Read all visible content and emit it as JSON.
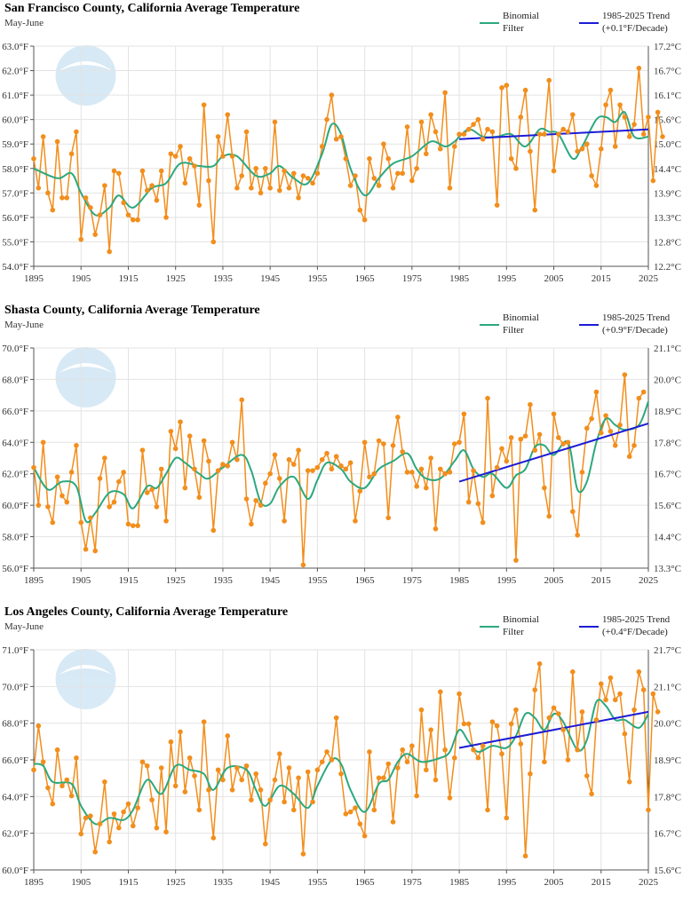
{
  "colors": {
    "observed": "#f28e1c",
    "filter": "#2ca87f",
    "trend": "#1c1cd6",
    "grid": "#e3e3e3",
    "logo": "#4f9fd6"
  },
  "chart_data": [
    {
      "type": "line",
      "title": "San Francisco County, California Average Temperature",
      "subtitle": "May-June",
      "legend": {
        "filter_line1": "Binomial",
        "filter_line2": "Filter",
        "trend_line1": "1985-2025 Trend",
        "trend_line2": "(+0.1°F/Decade)"
      },
      "ylim_f": [
        54,
        63
      ],
      "yticks_f": [
        "54.0°F",
        "55.0°F",
        "56.0°F",
        "57.0°F",
        "58.0°F",
        "59.0°F",
        "60.0°F",
        "61.0°F",
        "62.0°F",
        "63.0°F"
      ],
      "yticks_c": [
        "12.2°C",
        "12.8°C",
        "13.3°C",
        "13.9°C",
        "14.4°C",
        "15.0°C",
        "15.6°C",
        "16.1°C",
        "16.7°C",
        "17.2°C"
      ],
      "xticks": [
        "1895",
        "1905",
        "1915",
        "1925",
        "1935",
        "1945",
        "1955",
        "1965",
        "1975",
        "1985",
        "1995",
        "2005",
        "2015",
        "2025"
      ],
      "x_start": 1895,
      "values": [
        58.4,
        57.2,
        59.3,
        57.0,
        56.3,
        59.1,
        56.8,
        56.8,
        58.6,
        59.5,
        55.1,
        56.8,
        56.4,
        55.3,
        56.1,
        57.3,
        54.6,
        57.9,
        57.8,
        56.6,
        56.1,
        55.9,
        55.9,
        57.9,
        57.1,
        57.3,
        56.7,
        57.9,
        56.0,
        58.6,
        58.5,
        58.9,
        57.4,
        58.4,
        58.1,
        56.5,
        60.6,
        57.5,
        55.0,
        59.3,
        58.5,
        60.2,
        58.5,
        57.2,
        57.7,
        59.5,
        57.2,
        58.0,
        57.0,
        58.0,
        57.2,
        59.9,
        57.1,
        57.9,
        57.2,
        57.8,
        56.8,
        57.7,
        57.6,
        57.4,
        57.8,
        58.9,
        60.0,
        61.0,
        59.2,
        59.3,
        58.4,
        57.3,
        57.7,
        56.3,
        55.9,
        58.4,
        57.6,
        57.3,
        59.0,
        58.4,
        57.2,
        57.8,
        57.8,
        59.7,
        57.5,
        58.0,
        59.9,
        58.6,
        60.2,
        59.5,
        58.8,
        61.1,
        57.2,
        58.9,
        59.4,
        59.4,
        59.6,
        59.8,
        60.0,
        59.2,
        59.6,
        59.5,
        56.5,
        61.3,
        61.4,
        58.4,
        58.0,
        60.1,
        61.2,
        58.7,
        56.3,
        59.4,
        59.4,
        61.6,
        57.9,
        59.4,
        59.6,
        59.5,
        60.2,
        58.7,
        58.8,
        59.0,
        57.7,
        57.3,
        58.8,
        60.6,
        61.2,
        58.9,
        60.6,
        60.1,
        59.3,
        59.8,
        62.1,
        59.4,
        60.1,
        57.5,
        60.3,
        59.3
      ],
      "filter": [
        [
          1895,
          58.0
        ],
        [
          1900,
          57.6
        ],
        [
          1903,
          57.8
        ],
        [
          1905,
          57.0
        ],
        [
          1908,
          56.1
        ],
        [
          1911,
          56.4
        ],
        [
          1913,
          56.9
        ],
        [
          1916,
          56.4
        ],
        [
          1920,
          57.2
        ],
        [
          1923,
          57.4
        ],
        [
          1926,
          58.2
        ],
        [
          1930,
          58.1
        ],
        [
          1933,
          58.1
        ],
        [
          1935,
          58.5
        ],
        [
          1938,
          58.5
        ],
        [
          1942,
          57.7
        ],
        [
          1945,
          57.8
        ],
        [
          1947,
          58.1
        ],
        [
          1950,
          57.6
        ],
        [
          1953,
          57.4
        ],
        [
          1956,
          58.6
        ],
        [
          1958,
          59.8
        ],
        [
          1960,
          59.4
        ],
        [
          1962,
          58.0
        ],
        [
          1965,
          56.9
        ],
        [
          1968,
          57.6
        ],
        [
          1971,
          58.2
        ],
        [
          1975,
          58.5
        ],
        [
          1979,
          59.1
        ],
        [
          1982,
          58.9
        ],
        [
          1984,
          59.1
        ],
        [
          1987,
          59.6
        ],
        [
          1990,
          59.3
        ],
        [
          1993,
          59.3
        ],
        [
          1996,
          59.4
        ],
        [
          1999,
          58.9
        ],
        [
          2002,
          59.6
        ],
        [
          2004,
          59.5
        ],
        [
          2006,
          59.4
        ],
        [
          2009,
          58.4
        ],
        [
          2011,
          58.9
        ],
        [
          2014,
          60.0
        ],
        [
          2016,
          60.1
        ],
        [
          2018,
          59.9
        ],
        [
          2020,
          60.3
        ],
        [
          2022,
          59.3
        ],
        [
          2025,
          59.3
        ]
      ],
      "trend": [
        [
          1985,
          59.2
        ],
        [
          2025,
          59.6
        ]
      ]
    },
    {
      "type": "line",
      "title": "Shasta County, California Average Temperature",
      "subtitle": "May-June",
      "legend": {
        "filter_line1": "Binomial",
        "filter_line2": "Filter",
        "trend_line1": "1985-2025 Trend",
        "trend_line2": "(+0.9°F/Decade)"
      },
      "ylim_f": [
        56,
        70
      ],
      "yticks_f": [
        "56.0°F",
        "58.0°F",
        "60.0°F",
        "62.0°F",
        "64.0°F",
        "66.0°F",
        "68.0°F",
        "70.0°F"
      ],
      "yticks_c": [
        "13.3°C",
        "14.4°C",
        "15.6°C",
        "16.7°C",
        "17.8°C",
        "18.9°C",
        "20.0°C",
        "21.1°C"
      ],
      "xticks": [
        "1895",
        "1905",
        "1915",
        "1925",
        "1935",
        "1945",
        "1955",
        "1965",
        "1975",
        "1985",
        "1995",
        "2005",
        "2015",
        "2025"
      ],
      "x_start": 1895,
      "values": [
        62.4,
        60.0,
        64.0,
        59.9,
        58.9,
        61.8,
        60.6,
        60.2,
        62.1,
        63.8,
        58.9,
        57.2,
        59.2,
        57.1,
        61.7,
        63.0,
        59.9,
        60.2,
        61.5,
        62.1,
        58.8,
        58.7,
        58.7,
        63.5,
        60.8,
        61.0,
        59.9,
        62.3,
        59.0,
        64.7,
        63.6,
        65.3,
        61.1,
        64.4,
        62.3,
        60.5,
        64.1,
        62.8,
        58.4,
        62.2,
        62.6,
        62.5,
        64.0,
        62.9,
        66.7,
        60.4,
        58.8,
        60.3,
        60.0,
        61.4,
        62.0,
        63.2,
        61.7,
        59.0,
        62.9,
        62.6,
        63.5,
        56.2,
        62.2,
        62.2,
        62.4,
        62.9,
        63.3,
        62.3,
        63.1,
        62.5,
        62.3,
        62.7,
        59.0,
        60.9,
        64.0,
        61.8,
        62.0,
        64.1,
        63.9,
        59.2,
        63.8,
        65.6,
        63.4,
        62.1,
        62.1,
        61.2,
        62.3,
        61.1,
        63.0,
        58.5,
        62.3,
        62.0,
        62.1,
        63.9,
        64.0,
        65.8,
        60.2,
        62.2,
        60.1,
        58.9,
        66.8,
        60.6,
        62.4,
        63.6,
        62.8,
        64.3,
        56.5,
        64.2,
        64.4,
        66.4,
        63.5,
        64.5,
        61.1,
        59.3,
        65.8,
        64.3,
        63.9,
        64.0,
        59.6,
        58.1,
        62.1,
        64.9,
        65.5,
        67.2,
        64.6,
        65.7,
        64.7,
        63.8,
        65.1,
        68.3,
        63.1,
        63.8,
        66.8,
        67.2
      ],
      "filter": [
        [
          1895,
          62.4
        ],
        [
          1898,
          61.0
        ],
        [
          1901,
          61.5
        ],
        [
          1904,
          61.2
        ],
        [
          1906,
          59.0
        ],
        [
          1908,
          59.5
        ],
        [
          1911,
          60.8
        ],
        [
          1914,
          60.7
        ],
        [
          1916,
          59.8
        ],
        [
          1919,
          61.2
        ],
        [
          1921,
          61.1
        ],
        [
          1923,
          62.0
        ],
        [
          1925,
          63.0
        ],
        [
          1927,
          62.7
        ],
        [
          1930,
          62.0
        ],
        [
          1932,
          61.7
        ],
        [
          1935,
          62.4
        ],
        [
          1939,
          63.2
        ],
        [
          1941,
          62.2
        ],
        [
          1943,
          60.2
        ],
        [
          1945,
          60.1
        ],
        [
          1947,
          61.2
        ],
        [
          1950,
          61.8
        ],
        [
          1953,
          60.4
        ],
        [
          1955,
          61.6
        ],
        [
          1957,
          62.7
        ],
        [
          1960,
          62.3
        ],
        [
          1962,
          61.5
        ],
        [
          1965,
          61.1
        ],
        [
          1968,
          62.3
        ],
        [
          1971,
          62.8
        ],
        [
          1974,
          63.3
        ],
        [
          1976,
          62.3
        ],
        [
          1978,
          61.7
        ],
        [
          1981,
          61.7
        ],
        [
          1984,
          62.8
        ],
        [
          1986,
          63.5
        ],
        [
          1988,
          62.3
        ],
        [
          1990,
          61.8
        ],
        [
          1992,
          62.0
        ],
        [
          1995,
          61.1
        ],
        [
          1997,
          61.9
        ],
        [
          1999,
          62.3
        ],
        [
          2001,
          63.7
        ],
        [
          2003,
          63.8
        ],
        [
          2005,
          63.2
        ],
        [
          2008,
          64.0
        ],
        [
          2010,
          61.0
        ],
        [
          2012,
          61.5
        ],
        [
          2014,
          64.0
        ],
        [
          2016,
          65.5
        ],
        [
          2018,
          65.1
        ],
        [
          2020,
          64.8
        ],
        [
          2023,
          65.1
        ],
        [
          2025,
          66.6
        ]
      ],
      "trend": [
        [
          1985,
          61.5
        ],
        [
          2025,
          65.2
        ]
      ]
    },
    {
      "type": "line",
      "title": "Los Angeles County, California Average Temperature",
      "subtitle": "May-June",
      "legend": {
        "filter_line1": "Binomial",
        "filter_line2": "Filter",
        "trend_line1": "1985-2025 Trend",
        "trend_line2": "(+0.4°F/Decade)"
      },
      "ylim_f": [
        60,
        71
      ],
      "yticks_f": [
        "60.0°F",
        "62.0°F",
        "64.0°F",
        "66.0°F",
        "68.0°F",
        "70.0°F",
        "71.0°F"
      ],
      "yticks_c": [
        "15.6°C",
        "16.7°C",
        "17.8°C",
        "18.9°C",
        "20.0°C",
        "21.1°C",
        "21.7°C"
      ],
      "xticks": [
        "1895",
        "1905",
        "1915",
        "1925",
        "1935",
        "1945",
        "1955",
        "1965",
        "1975",
        "1985",
        "1995",
        "2005",
        "2015",
        "2025"
      ],
      "x_start": 1895,
      "values": [
        65.0,
        67.2,
        65.4,
        64.1,
        63.3,
        66.0,
        64.2,
        64.5,
        63.7,
        65.6,
        61.8,
        62.6,
        62.7,
        60.9,
        62.3,
        64.4,
        61.4,
        62.8,
        62.1,
        62.9,
        63.3,
        62.2,
        63.1,
        65.4,
        65.2,
        63.5,
        62.1,
        65.1,
        61.9,
        66.4,
        64.2,
        66.9,
        63.9,
        65.6,
        64.7,
        63.0,
        67.4,
        64.0,
        61.6,
        65.0,
        64.5,
        66.7,
        64.0,
        65.1,
        64.5,
        65.2,
        63.5,
        64.8,
        64.0,
        61.3,
        63.5,
        64.5,
        65.8,
        63.4,
        65.1,
        63.0,
        64.6,
        60.8,
        64.9,
        63.4,
        65.0,
        65.4,
        65.9,
        65.5,
        67.6,
        64.8,
        62.8,
        62.9,
        63.1,
        62.3,
        61.7,
        65.9,
        63.0,
        64.6,
        64.6,
        65.3,
        62.4,
        65.1,
        66.0,
        65.4,
        66.2,
        63.7,
        68.0,
        65.0,
        67.0,
        64.5,
        68.9,
        66.0,
        63.6,
        65.6,
        68.8,
        67.3,
        67.3,
        66.0,
        65.6,
        66.2,
        63.0,
        67.4,
        67.2,
        65.8,
        62.6,
        67.3,
        68.0,
        66.3,
        60.7,
        64.8,
        69.0,
        70.3,
        65.4,
        67.6,
        68.1,
        67.8,
        67.0,
        65.5,
        69.9,
        66.0,
        67.9,
        64.7,
        63.8,
        67.5,
        69.3,
        68.5,
        69.6,
        68.5,
        68.8,
        66.8,
        64.4,
        68.0,
        69.9,
        69.0,
        63.0,
        68.8,
        67.9
      ],
      "filter": [
        [
          1895,
          65.3
        ],
        [
          1897,
          65.2
        ],
        [
          1899,
          64.4
        ],
        [
          1903,
          64.3
        ],
        [
          1905,
          63.2
        ],
        [
          1908,
          62.3
        ],
        [
          1911,
          62.6
        ],
        [
          1914,
          62.5
        ],
        [
          1916,
          63.0
        ],
        [
          1919,
          64.5
        ],
        [
          1922,
          63.8
        ],
        [
          1925,
          65.2
        ],
        [
          1928,
          65.0
        ],
        [
          1931,
          64.8
        ],
        [
          1933,
          64.0
        ],
        [
          1936,
          65.1
        ],
        [
          1940,
          65.0
        ],
        [
          1942,
          64.0
        ],
        [
          1944,
          63.2
        ],
        [
          1947,
          64.2
        ],
        [
          1950,
          63.8
        ],
        [
          1953,
          63.1
        ],
        [
          1955,
          64.2
        ],
        [
          1958,
          65.5
        ],
        [
          1960,
          65.3
        ],
        [
          1962,
          64.0
        ],
        [
          1965,
          62.9
        ],
        [
          1968,
          64.3
        ],
        [
          1970,
          64.5
        ],
        [
          1972,
          65.4
        ],
        [
          1974,
          65.8
        ],
        [
          1977,
          65.4
        ],
        [
          1981,
          65.6
        ],
        [
          1983,
          65.9
        ],
        [
          1985,
          67.0
        ],
        [
          1987,
          66.4
        ],
        [
          1989,
          65.9
        ],
        [
          1992,
          66.2
        ],
        [
          1995,
          66.1
        ],
        [
          1997,
          66.7
        ],
        [
          1999,
          67.8
        ],
        [
          2001,
          67.6
        ],
        [
          2003,
          67.0
        ],
        [
          2005,
          67.8
        ],
        [
          2007,
          67.4
        ],
        [
          2010,
          66.0
        ],
        [
          2012,
          66.5
        ],
        [
          2014,
          68.4
        ],
        [
          2016,
          68.2
        ],
        [
          2018,
          67.5
        ],
        [
          2020,
          67.5
        ],
        [
          2023,
          67.1
        ],
        [
          2025,
          67.8
        ]
      ],
      "trend": [
        [
          1985,
          66.1
        ],
        [
          2025,
          67.9
        ]
      ]
    }
  ]
}
